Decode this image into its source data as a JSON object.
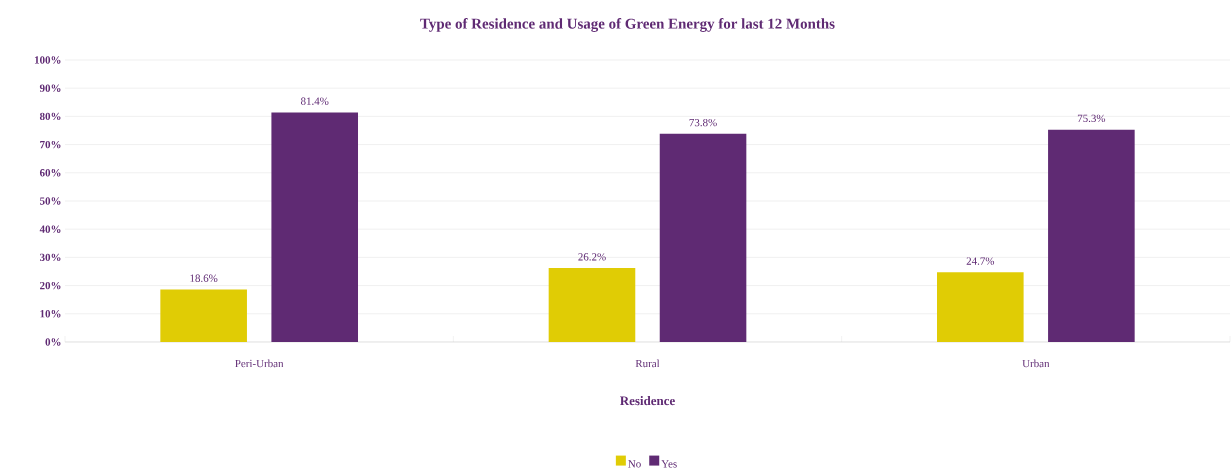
{
  "chart_data": {
    "type": "bar",
    "title": "Type of Residence and Usage of Green Energy for last 12 Months",
    "xlabel": "Residence",
    "categories": [
      "Peri-Urban",
      "Rural",
      "Urban"
    ],
    "series": [
      {
        "name": "No",
        "color": "#e0cc05",
        "values": [
          18.6,
          26.2,
          24.7
        ],
        "value_labels": [
          "18.6%",
          "26.2%",
          "24.7%"
        ]
      },
      {
        "name": "Yes",
        "color": "#5f2a73",
        "values": [
          81.4,
          73.8,
          75.3
        ],
        "value_labels": [
          "81.4%",
          "73.8%",
          "75.3%"
        ]
      }
    ],
    "ylim": [
      0,
      100
    ],
    "yticks": [
      {
        "value": 0,
        "label": "0%"
      },
      {
        "value": 10,
        "label": "10%"
      },
      {
        "value": 20,
        "label": "20%"
      },
      {
        "value": 30,
        "label": "30%"
      },
      {
        "value": 40,
        "label": "40%"
      },
      {
        "value": 50,
        "label": "50%"
      },
      {
        "value": 60,
        "label": "60%"
      },
      {
        "value": 70,
        "label": "70%"
      },
      {
        "value": 80,
        "label": "80%"
      },
      {
        "value": 90,
        "label": "90%"
      },
      {
        "value": 100,
        "label": "100%"
      }
    ],
    "grid": "y",
    "legend": "bottom"
  }
}
